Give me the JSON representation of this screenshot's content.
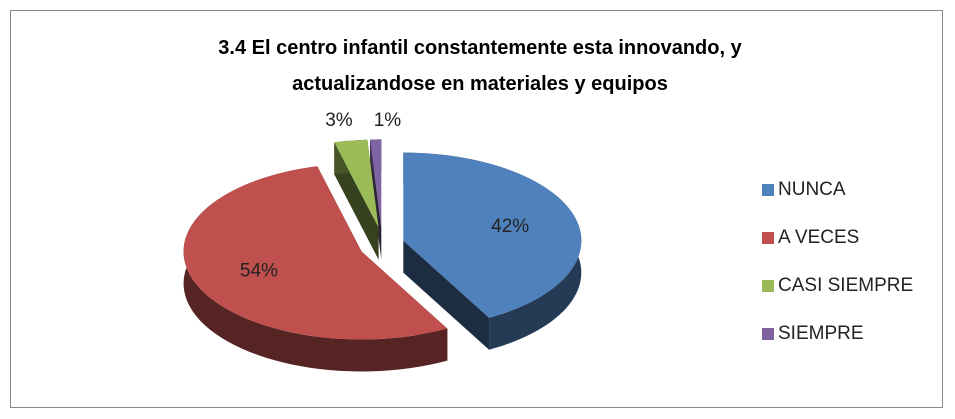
{
  "chart_data": {
    "type": "pie",
    "title": "3.4 El centro infantil constantemente esta innovando, y actualizandose en materiales y equipos",
    "categories": [
      "NUNCA",
      "A VECES",
      "CASI SIEMPRE",
      "SIEMPRE"
    ],
    "values": [
      42,
      54,
      3,
      1
    ],
    "value_labels": [
      "42%",
      "54%",
      "3%",
      "1%"
    ],
    "colors": [
      "#4f81bd",
      "#c0504d",
      "#9bbb59",
      "#8064a2"
    ],
    "legend": "right",
    "exploded": true,
    "three_d": true
  }
}
